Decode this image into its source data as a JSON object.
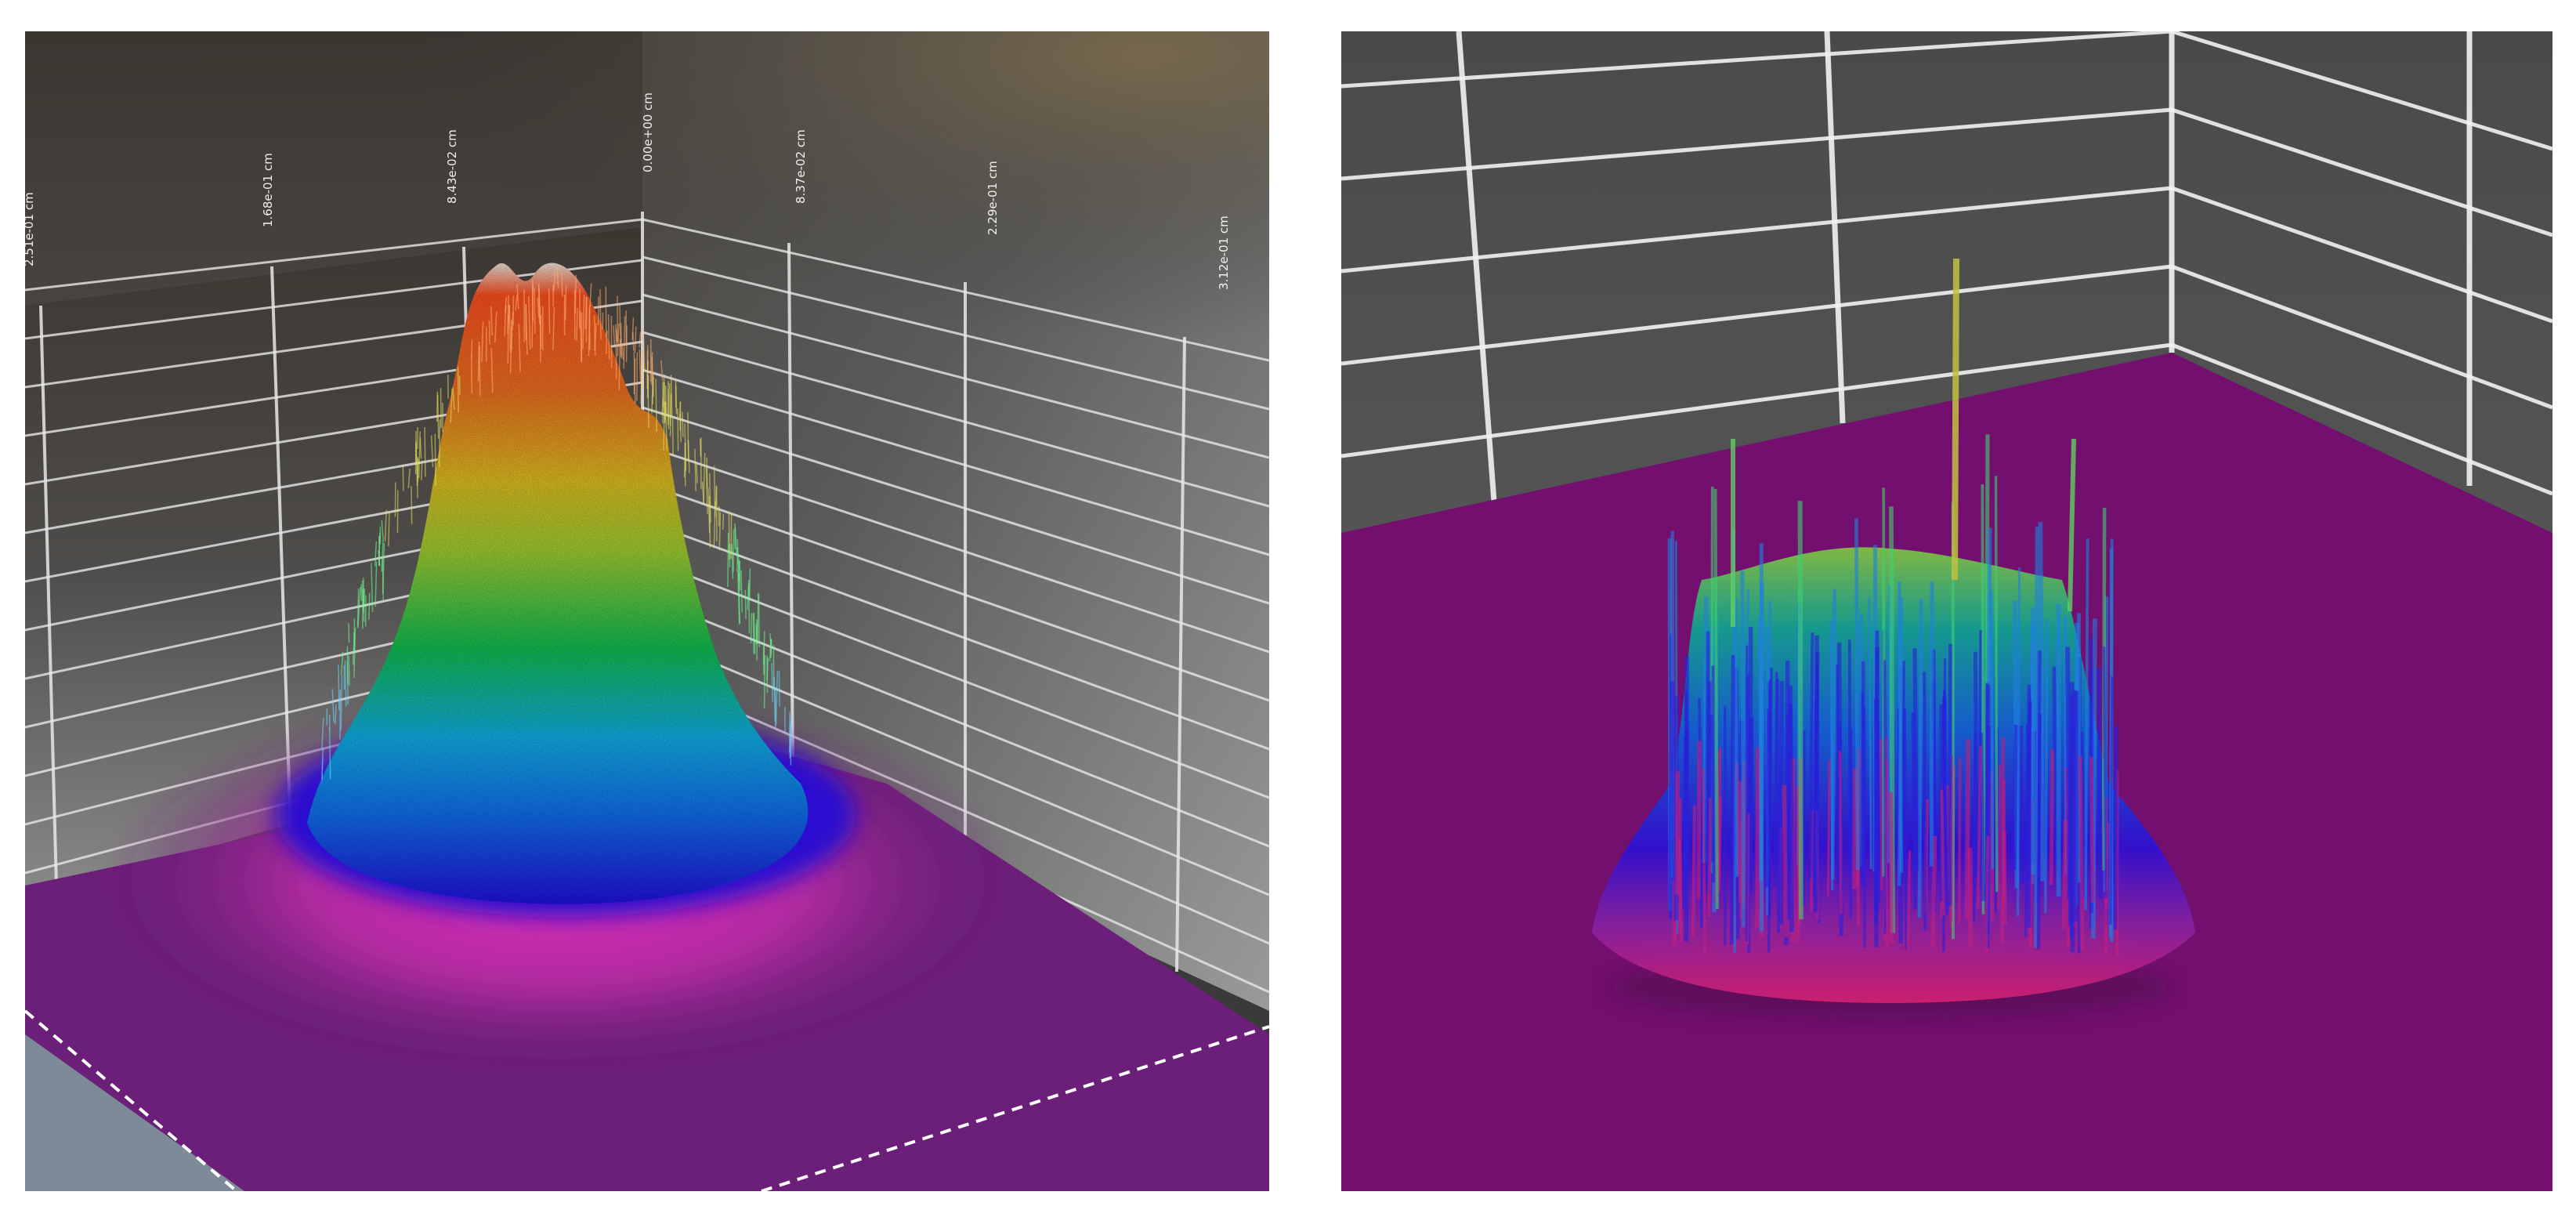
{
  "chart_data": [
    {
      "type": "surface-3d",
      "tick_labels": [
        "2.51e-01 cm",
        "1.68e-01 cm",
        "8.43e-02 cm",
        "0.00e+00 cm",
        "8.37e-02 cm",
        "2.29e-01 cm",
        "3.12e-01 cm"
      ],
      "colormap": [
        "#6a1a7a",
        "#d020a8",
        "#2010e0",
        "#10b0e8",
        "#10c050",
        "#e0d020",
        "#ff6020"
      ],
      "colors": {
        "floor": "#6b1f78",
        "wall": "#4a4a4a",
        "grid": "#e8e8e8"
      },
      "peak": {
        "shape": "gaussian",
        "relative_height": 1.0
      }
    },
    {
      "type": "surface-3d",
      "tick_labels": [],
      "colormap": [
        "#73106f",
        "#e02070",
        "#3010d0",
        "#1070d8",
        "#20b060",
        "#c0c020"
      ],
      "colors": {
        "floor": "#73106f",
        "wall": "#555555",
        "grid": "#f2f2f2"
      },
      "peak": {
        "shape": "speckled",
        "relative_height": 0.55
      }
    }
  ]
}
